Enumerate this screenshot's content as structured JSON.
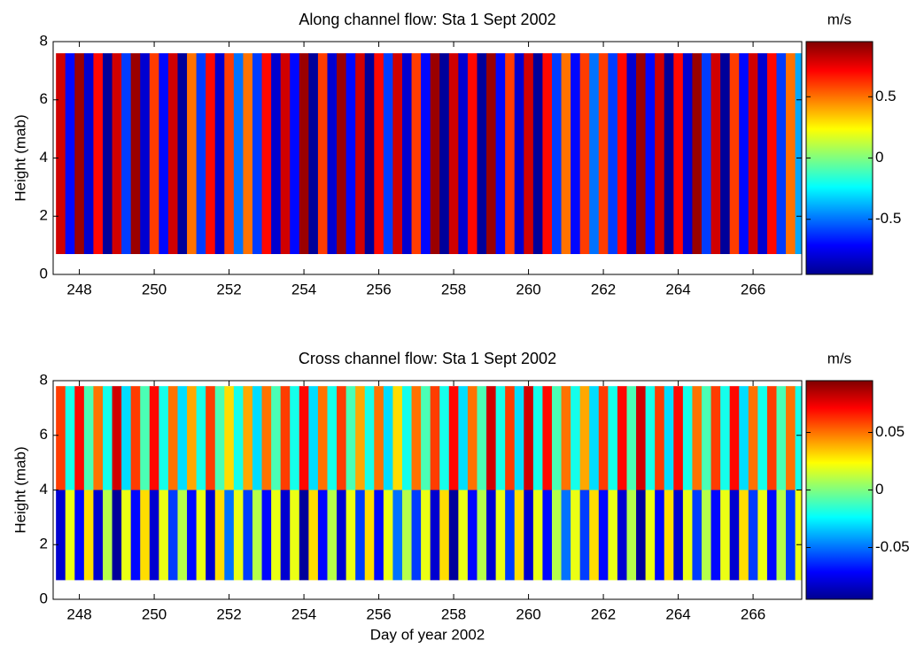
{
  "chart_data": [
    {
      "type": "heatmap",
      "title": "Along channel flow: Sta 1 Sept 2002",
      "ylabel": "Height (mab)",
      "colorbar_label": "m/s",
      "xlim": [
        247.3,
        267.3
      ],
      "xticks": [
        248,
        250,
        252,
        254,
        256,
        258,
        260,
        262,
        264,
        266
      ],
      "ylim": [
        0,
        8
      ],
      "yticks": [
        0,
        2,
        4,
        6,
        8
      ],
      "clim": [
        -0.95,
        0.95
      ],
      "cticks": [
        -0.5,
        0,
        0.5
      ],
      "colormap": "jet",
      "y_bins": [
        0.7,
        7.6
      ],
      "x": [
        247.5,
        247.75,
        248,
        248.25,
        248.5,
        248.75,
        249,
        249.25,
        249.5,
        249.75,
        250,
        250.25,
        250.5,
        250.75,
        251,
        251.25,
        251.5,
        251.75,
        252,
        252.25,
        252.5,
        252.75,
        253,
        253.25,
        253.5,
        253.75,
        254,
        254.25,
        254.5,
        254.75,
        255,
        255.25,
        255.5,
        255.75,
        256,
        256.25,
        256.5,
        256.75,
        257,
        257.25,
        257.5,
        257.75,
        258,
        258.25,
        258.5,
        258.75,
        259,
        259.25,
        259.5,
        259.75,
        260,
        260.25,
        260.5,
        260.75,
        261,
        261.25,
        261.5,
        261.75,
        262,
        262.25,
        262.5,
        262.75,
        263,
        263.25,
        263.5,
        263.75,
        264,
        264.25,
        264.5,
        264.75,
        265,
        265.25,
        265.5,
        265.75,
        266,
        266.25,
        266.5,
        266.75,
        267,
        267.25
      ],
      "values": [
        [
          0.8,
          -0.7,
          0.9,
          -0.8,
          0.7,
          -0.9,
          0.8,
          -0.6,
          0.9,
          -0.8,
          0.6,
          -0.7,
          0.8,
          -0.9,
          0.5,
          -0.6,
          0.7,
          -0.8,
          0.6,
          -0.5,
          0.5,
          -0.6,
          0.7,
          -0.8,
          0.8,
          -0.7,
          0.9,
          -0.9,
          0.6,
          -0.8,
          0.9,
          -0.7,
          0.8,
          -0.9,
          0.7,
          -0.6,
          0.8,
          -0.8,
          0.6,
          -0.7,
          0.9,
          -0.9,
          0.8,
          -0.8,
          0.7,
          -0.9,
          0.9,
          -0.7,
          0.6,
          -0.8,
          0.8,
          -0.9,
          0.7,
          -0.6,
          0.5,
          -0.7,
          0.6,
          -0.5,
          0.6,
          -0.6,
          0.7,
          -0.8,
          0.9,
          -0.7,
          0.8,
          -0.9,
          0.7,
          -0.8,
          0.9,
          -0.6,
          0.8,
          -0.9,
          0.6,
          -0.7,
          0.8,
          -0.8,
          0.7,
          -0.6,
          0.5,
          -0.4
        ]
      ]
    },
    {
      "type": "heatmap",
      "title": "Cross channel flow: Sta 1 Sept 2002",
      "ylabel": "Height (mab)",
      "xlabel": "Day of year 2002",
      "colorbar_label": "m/s",
      "xlim": [
        247.3,
        267.3
      ],
      "xticks": [
        248,
        250,
        252,
        254,
        256,
        258,
        260,
        262,
        264,
        266
      ],
      "ylim": [
        0,
        8
      ],
      "yticks": [
        0,
        2,
        4,
        6,
        8
      ],
      "clim": [
        -0.095,
        0.095
      ],
      "cticks": [
        -0.05,
        0,
        0.05
      ],
      "colormap": "jet",
      "y_bins": [
        0.7,
        4,
        7.8
      ],
      "x": [
        247.5,
        247.75,
        248,
        248.25,
        248.5,
        248.75,
        249,
        249.25,
        249.5,
        249.75,
        250,
        250.25,
        250.5,
        250.75,
        251,
        251.25,
        251.5,
        251.75,
        252,
        252.25,
        252.5,
        252.75,
        253,
        253.25,
        253.5,
        253.75,
        254,
        254.25,
        254.5,
        254.75,
        255,
        255.25,
        255.5,
        255.75,
        256,
        256.25,
        256.5,
        256.75,
        257,
        257.25,
        257.5,
        257.75,
        258,
        258.25,
        258.5,
        258.75,
        259,
        259.25,
        259.5,
        259.75,
        260,
        260.25,
        260.5,
        260.75,
        261,
        261.25,
        261.5,
        261.75,
        262,
        262.25,
        262.5,
        262.75,
        263,
        263.25,
        263.5,
        263.75,
        264,
        264.25,
        264.5,
        264.75,
        265,
        265.25,
        265.5,
        265.75,
        266,
        266.25,
        266.5,
        266.75,
        267,
        267.25
      ],
      "values": [
        [
          -0.08,
          0.02,
          -0.07,
          0.03,
          -0.08,
          0.01,
          -0.09,
          0.02,
          -0.07,
          0.03,
          -0.08,
          0.02,
          -0.06,
          0.01,
          -0.07,
          0.02,
          -0.08,
          0.03,
          -0.05,
          0.02,
          -0.06,
          0.01,
          -0.07,
          0.02,
          -0.08,
          0.02,
          -0.09,
          0.03,
          -0.07,
          0.01,
          -0.08,
          0.02,
          -0.06,
          0.03,
          -0.07,
          0.02,
          -0.05,
          0.01,
          -0.06,
          0.02,
          -0.08,
          0.03,
          -0.09,
          0.02,
          -0.07,
          0.01,
          -0.08,
          0.02,
          -0.06,
          0.03,
          -0.08,
          0.02,
          -0.07,
          0.01,
          -0.05,
          0.02,
          -0.06,
          0.03,
          -0.07,
          0.02,
          -0.08,
          0.01,
          -0.09,
          0.02,
          -0.07,
          0.03,
          -0.08,
          0.02,
          -0.06,
          0.01,
          -0.07,
          0.02,
          -0.08,
          0.03,
          -0.06,
          0.02,
          -0.07,
          0.01,
          -0.06,
          0.02
        ],
        [
          0.06,
          -0.02,
          0.07,
          -0.01,
          0.05,
          -0.02,
          0.08,
          -0.03,
          0.06,
          -0.01,
          0.07,
          -0.02,
          0.05,
          -0.03,
          0.04,
          -0.02,
          0.06,
          -0.01,
          0.03,
          -0.02,
          0.04,
          -0.03,
          0.05,
          -0.01,
          0.06,
          -0.02,
          0.07,
          -0.03,
          0.05,
          -0.02,
          0.06,
          -0.01,
          0.04,
          -0.02,
          0.05,
          -0.03,
          0.03,
          -0.02,
          0.05,
          -0.01,
          0.06,
          -0.02,
          0.07,
          -0.03,
          0.05,
          -0.01,
          0.08,
          -0.02,
          0.06,
          -0.03,
          0.08,
          -0.02,
          0.07,
          -0.01,
          0.05,
          -0.02,
          0.04,
          -0.03,
          0.06,
          -0.02,
          0.07,
          -0.01,
          0.08,
          -0.02,
          0.06,
          -0.03,
          0.07,
          -0.02,
          0.05,
          -0.01,
          0.06,
          -0.02,
          0.07,
          -0.03,
          0.05,
          -0.02,
          0.06,
          -0.01,
          0.05,
          -0.02
        ]
      ]
    }
  ]
}
